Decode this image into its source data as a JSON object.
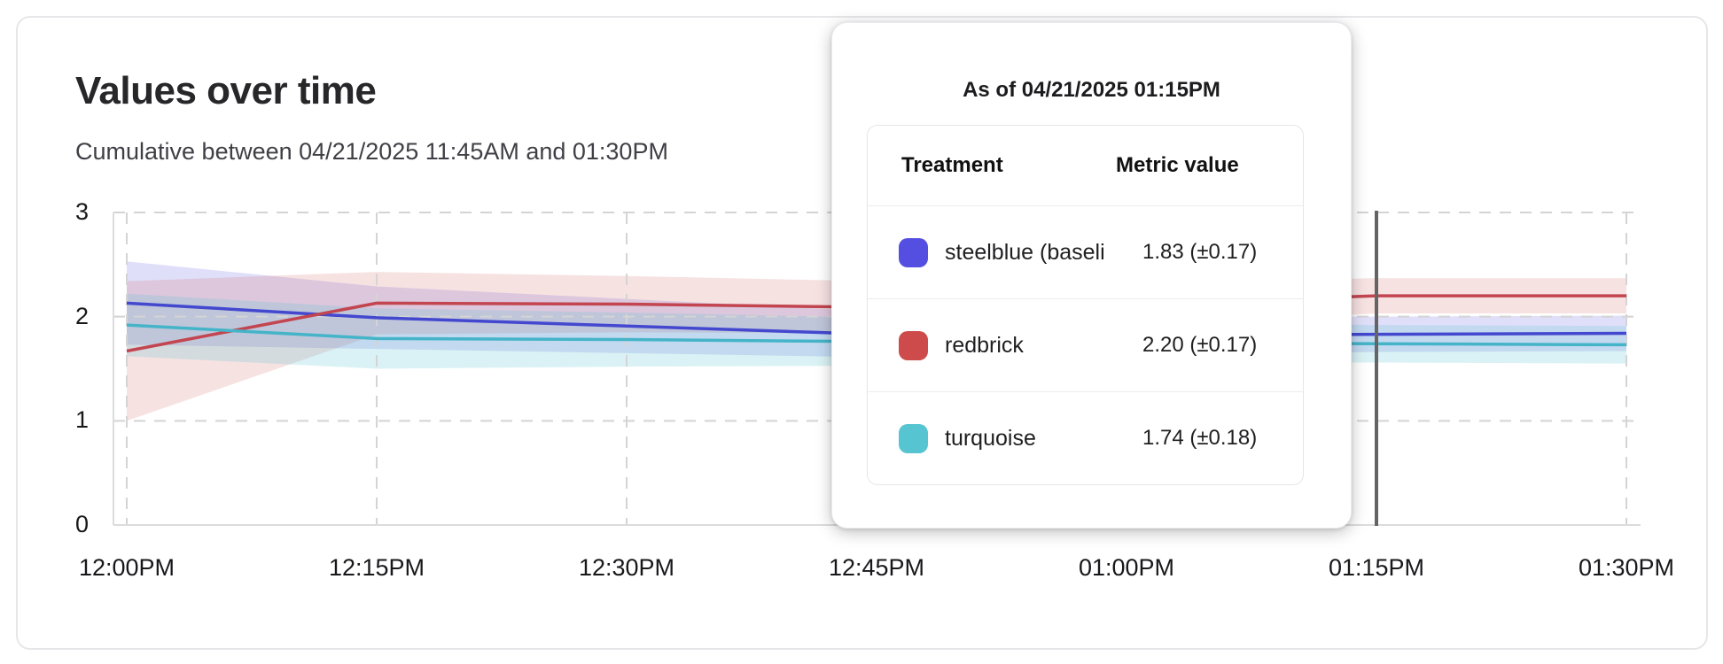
{
  "header": {
    "title": "Values over time",
    "subtitle": "Cumulative between 04/21/2025 11:45AM and 01:30PM"
  },
  "tooltip": {
    "title": "As of 04/21/2025 01:15PM",
    "columns": {
      "treatment": "Treatment",
      "metric": "Metric value"
    },
    "rows": [
      {
        "name": "steelblue  (baseli",
        "value": "1.83 (±0.17)",
        "color": "#544fe0"
      },
      {
        "name": "redbrick",
        "value": "2.20 (±0.17)",
        "color": "#ce4b4b"
      },
      {
        "name": "turquoise",
        "value": "1.74 (±0.18)",
        "color": "#57c4d1"
      }
    ],
    "crosshair_tick_index": 5
  },
  "chart_data": {
    "type": "line",
    "title": "Values over time",
    "subtitle": "Cumulative between 04/21/2025 11:45AM and 01:30PM",
    "x_tick_labels": [
      "12:00PM",
      "12:15PM",
      "12:30PM",
      "12:45PM",
      "01:00PM",
      "01:15PM",
      "01:30PM"
    ],
    "y_tick_labels": [
      "0",
      "1",
      "2",
      "3"
    ],
    "y_ticks": [
      0,
      1,
      2,
      3
    ],
    "ylim": [
      0,
      3
    ],
    "grid": true,
    "legend_position": "tooltip",
    "series": [
      {
        "name": "steelblue (baseline)",
        "line_color": "#4348cf",
        "band_color": "#544fe0",
        "values": [
          2.13,
          1.99,
          1.91,
          1.83,
          1.82,
          1.83,
          1.84
        ],
        "ci": [
          0.4,
          0.3,
          0.26,
          0.22,
          0.19,
          0.17,
          0.17
        ]
      },
      {
        "name": "redbrick",
        "line_color": "#c2454f",
        "band_color": "#ce4b4b",
        "values": [
          1.67,
          2.13,
          2.12,
          2.09,
          2.12,
          2.2,
          2.2
        ],
        "ci": [
          0.67,
          0.3,
          0.27,
          0.25,
          0.2,
          0.17,
          0.17
        ]
      },
      {
        "name": "turquoise",
        "line_color": "#45b4c8",
        "band_color": "#57c4d1",
        "values": [
          1.92,
          1.79,
          1.78,
          1.76,
          1.75,
          1.74,
          1.73
        ],
        "ci": [
          0.3,
          0.29,
          0.26,
          0.23,
          0.2,
          0.18,
          0.18
        ]
      }
    ]
  },
  "colors": {
    "crosshair": "#646464",
    "grid": "#d4d4d4",
    "axis": "#dcdcdc"
  }
}
